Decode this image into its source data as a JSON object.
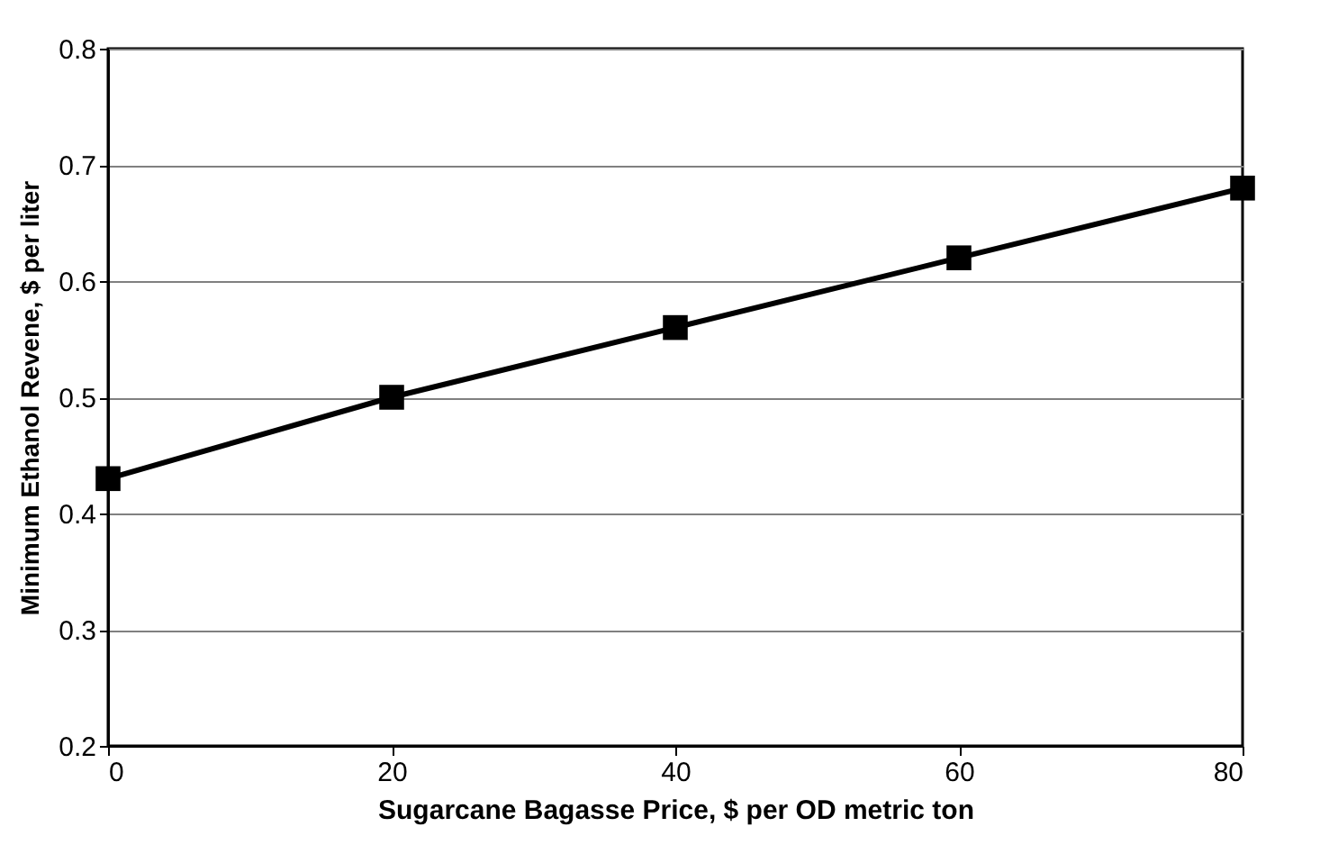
{
  "chart_data": {
    "type": "line",
    "xlabel": "Sugarcane Bagasse Price, $ per OD metric ton",
    "ylabel": "Minimum Ethanol Revene, $ per liter",
    "x": [
      0,
      20,
      40,
      60,
      80
    ],
    "series": [
      {
        "color": "#000000",
        "values": [
          0.43,
          0.5,
          0.56,
          0.62,
          0.68
        ]
      }
    ],
    "xlim": [
      0,
      80
    ],
    "xticks": [
      0,
      20,
      40,
      60,
      80
    ],
    "ylim": [
      0.2,
      0.8
    ],
    "yticks": [
      0.2,
      0.3,
      0.4,
      0.5,
      0.6,
      0.7,
      0.8
    ],
    "grid": "y",
    "marker": "square",
    "line_style": "solid",
    "legend": false
  }
}
